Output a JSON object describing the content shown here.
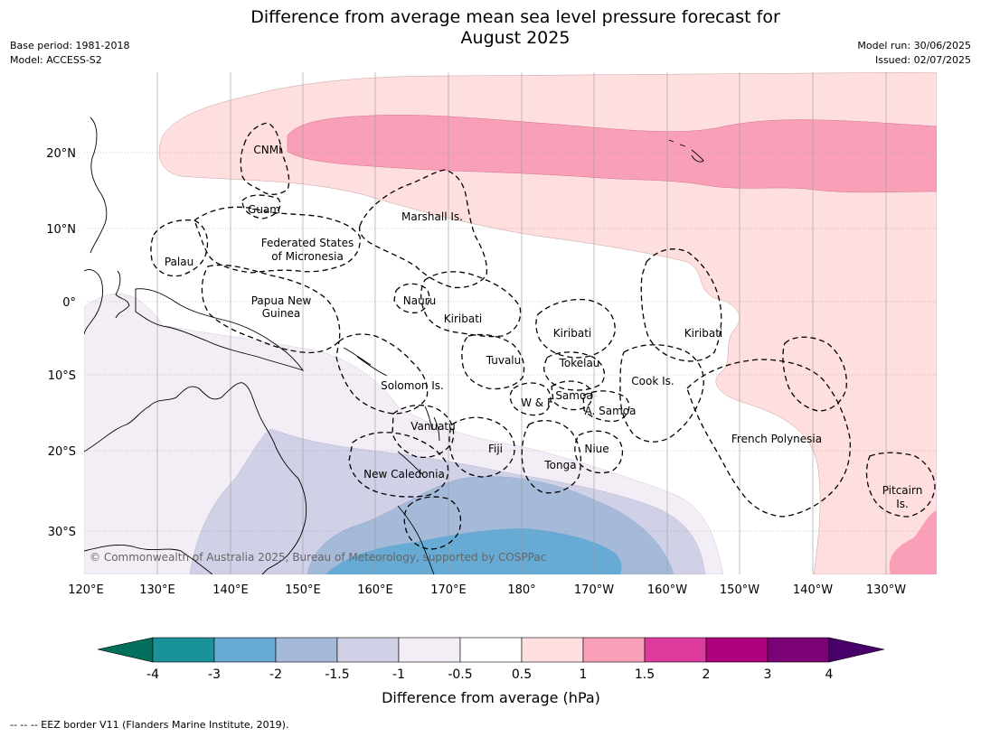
{
  "title": "Difference from average mean sea level pressure forecast for\nAugust 2025",
  "meta_left": {
    "base_period": "Base period: 1981-2018",
    "model": "Model: ACCESS-S2"
  },
  "meta_right": {
    "model_run": "Model run: 30/06/2025",
    "issued": "Issued: 02/07/2025"
  },
  "map": {
    "lon_labels": [
      "120°E",
      "130°E",
      "140°E",
      "150°E",
      "160°E",
      "170°E",
      "180°",
      "170°W",
      "160°W",
      "150°W",
      "140°W",
      "130°W"
    ],
    "lat_labels": [
      "20°N",
      "10°N",
      "0°",
      "10°S",
      "20°S",
      "30°S"
    ],
    "copyright": "© Commonwealth of Australia 2025, Bureau of Meteorology, supported by COSPPac",
    "regions": {
      "cnmi": "CNMI",
      "guam": "Guam",
      "marshall": "Marshall Is.",
      "fsm_line1": "Federated States",
      "fsm_line2": "of Micronesia",
      "palau": "Palau",
      "png_line1": "Papua New",
      "png_line2": "Guinea",
      "nauru": "Nauru",
      "kiribati_w": "Kiribati",
      "kiribati_c": "Kiribati",
      "kiribati_e": "Kiribati",
      "tuvalu": "Tuvalu",
      "tokelau": "Tokelau",
      "solomon": "Solomon Is.",
      "samoa": "Samoa",
      "wf": "W & F",
      "asamoa": "A. Samoa",
      "cook": "Cook Is.",
      "vanuatu": "Vanuatu",
      "fiji": "Fiji",
      "niue": "Niue",
      "tonga": "Tonga",
      "new_caledonia": "New Caledonia",
      "french_polynesia": "French Polynesia",
      "pitcairn_line1": "Pitcairn",
      "pitcairn_line2": "Is."
    }
  },
  "colorbar": {
    "title": "Difference from average (hPa)",
    "ticks": [
      "-4",
      "-3",
      "-2",
      "-1.5",
      "-1",
      "-0.5",
      "0.5",
      "1",
      "1.5",
      "2",
      "3",
      "4"
    ],
    "colors": [
      "#1a9299",
      "#67aad4",
      "#a5bad9",
      "#d0d0e6",
      "#f3edf6",
      "#ffffff",
      "#fedede",
      "#f99fb7",
      "#dd3a9d",
      "#ad017e",
      "#7b0177"
    ],
    "under_color": "#02705c",
    "over_color": "#4a006a"
  },
  "footer": "-- -- -- EEZ border V11 (Flanders Marine Institute, 2019)."
}
